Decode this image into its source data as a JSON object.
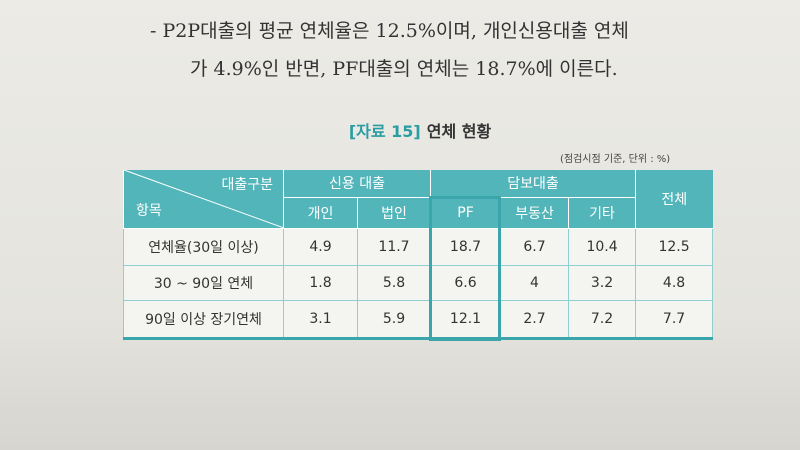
{
  "text": {
    "lines": [
      "- P2P대출의 평균 연체율은 12.5%이며, 개인신용대출 연체",
      "가 4.9%인 반면, PF대출의 연체는 18.7%에 이른다."
    ]
  },
  "caption": {
    "label": "[자료 15]",
    "title": "연체 현황"
  },
  "note": "(점검시점 기준, 단위 : %)",
  "table": {
    "header": {
      "corner_top": "대출구분",
      "corner_bottom": "항목",
      "groups": [
        "신용 대출",
        "담보대출"
      ],
      "total": "전체",
      "subheaders": [
        "개인",
        "법인",
        "PF",
        "부동산",
        "기타"
      ]
    },
    "rows": [
      [
        "연체율(30일 이상)",
        4.9,
        11.7,
        18.7,
        6.7,
        10.4,
        12.5
      ],
      [
        "30 ~ 90일 연체",
        1.8,
        5.8,
        6.6,
        4.0,
        3.2,
        4.8
      ],
      [
        "90일 이상 장기연체",
        3.1,
        5.9,
        12.1,
        2.7,
        7.2,
        7.7
      ]
    ]
  }
}
